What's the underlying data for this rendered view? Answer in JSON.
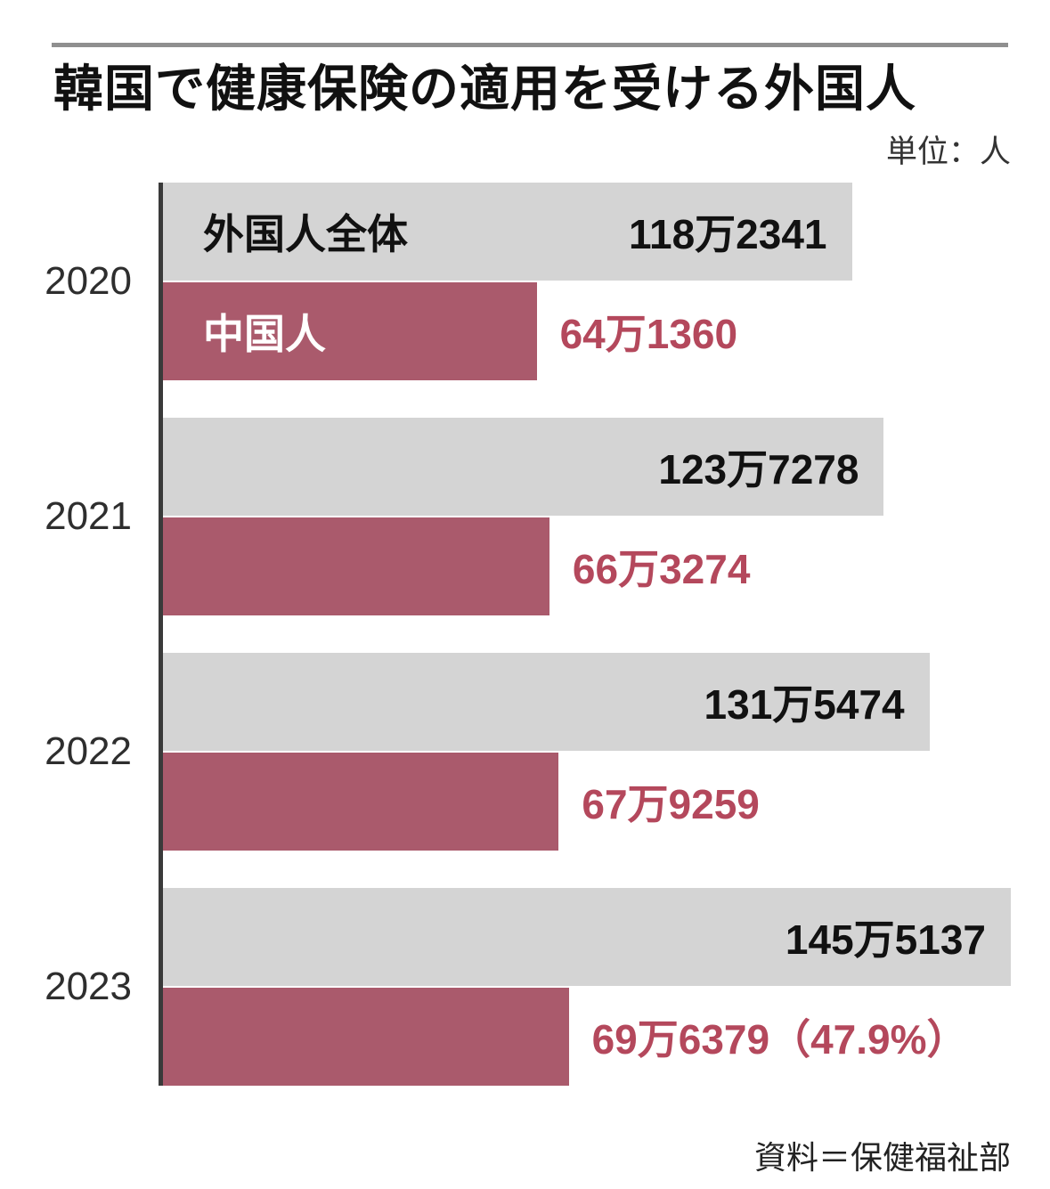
{
  "header": {
    "title": "韓国で健康保険の適用を受ける外国人",
    "unit_label": "単位：人"
  },
  "chart_data": {
    "type": "bar",
    "orientation": "horizontal",
    "title": "韓国で健康保険の適用を受ける外国人",
    "unit": "人",
    "categories": [
      "2020",
      "2021",
      "2022",
      "2023"
    ],
    "series": [
      {
        "name": "外国人全体",
        "key": "total",
        "bar_color": "#d4d4d4",
        "name_color": "#111111",
        "value_color": "#111111",
        "value_position": "inside",
        "values": [
          1182341,
          1237278,
          1315474,
          1455137
        ],
        "value_labels": [
          "118万2341",
          "123万7278",
          "131万5474",
          "145万5137"
        ]
      },
      {
        "name": "中国人",
        "key": "china",
        "bar_color": "#aa5a6c",
        "name_color": "#ffffff",
        "value_color": "#b4485c",
        "value_position": "outside",
        "values": [
          641360,
          663274,
          679259,
          696379
        ],
        "value_labels": [
          "64万1360",
          "66万3274",
          "67万9259",
          "69万6379（47.9%）"
        ]
      }
    ],
    "xmax": 1455137,
    "axis_line_color": "#3a3a3a",
    "grid": false,
    "legend_position": "labels-inside-first-group"
  },
  "footer": {
    "source": "資料＝保健福祉部"
  }
}
